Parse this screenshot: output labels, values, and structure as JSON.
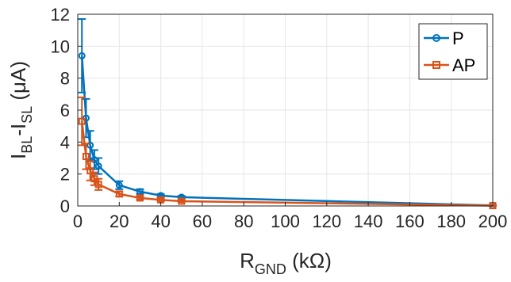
{
  "chart_data": {
    "type": "line",
    "xlabel": {
      "main": "R",
      "sub": "GND",
      "rest": " (kΩ)"
    },
    "ylabel": {
      "a": "I",
      "a_sub": "BL",
      "b": "-I",
      "b_sub": "SL",
      "rest": " (μA)"
    },
    "xlim": [
      0,
      200
    ],
    "ylim": [
      0,
      12
    ],
    "xticks": [
      0,
      20,
      40,
      60,
      80,
      100,
      120,
      140,
      160,
      180,
      200
    ],
    "yticks": [
      0,
      2,
      4,
      6,
      8,
      10,
      12
    ],
    "grid": true,
    "legend_position": "top-right",
    "series": [
      {
        "name": "P",
        "color": "#0072BD",
        "marker": "circle",
        "x": [
          2,
          4,
          6,
          8,
          10,
          20,
          30,
          40,
          50,
          200
        ],
        "y": [
          9.4,
          5.5,
          3.8,
          2.9,
          2.5,
          1.3,
          0.9,
          0.65,
          0.55,
          0.03
        ],
        "err": [
          2.3,
          1.2,
          0.9,
          0.6,
          0.5,
          0.25,
          0.15,
          0.1,
          0.08,
          0.02
        ]
      },
      {
        "name": "AP",
        "color": "#D95319",
        "marker": "square",
        "x": [
          2,
          4,
          6,
          8,
          10,
          20,
          30,
          40,
          50,
          200
        ],
        "y": [
          5.3,
          3.1,
          2.2,
          1.7,
          1.35,
          0.75,
          0.5,
          0.38,
          0.3,
          0.02
        ],
        "err": [
          1.5,
          0.8,
          0.6,
          0.4,
          0.35,
          0.15,
          0.1,
          0.08,
          0.06,
          0.02
        ]
      }
    ]
  }
}
